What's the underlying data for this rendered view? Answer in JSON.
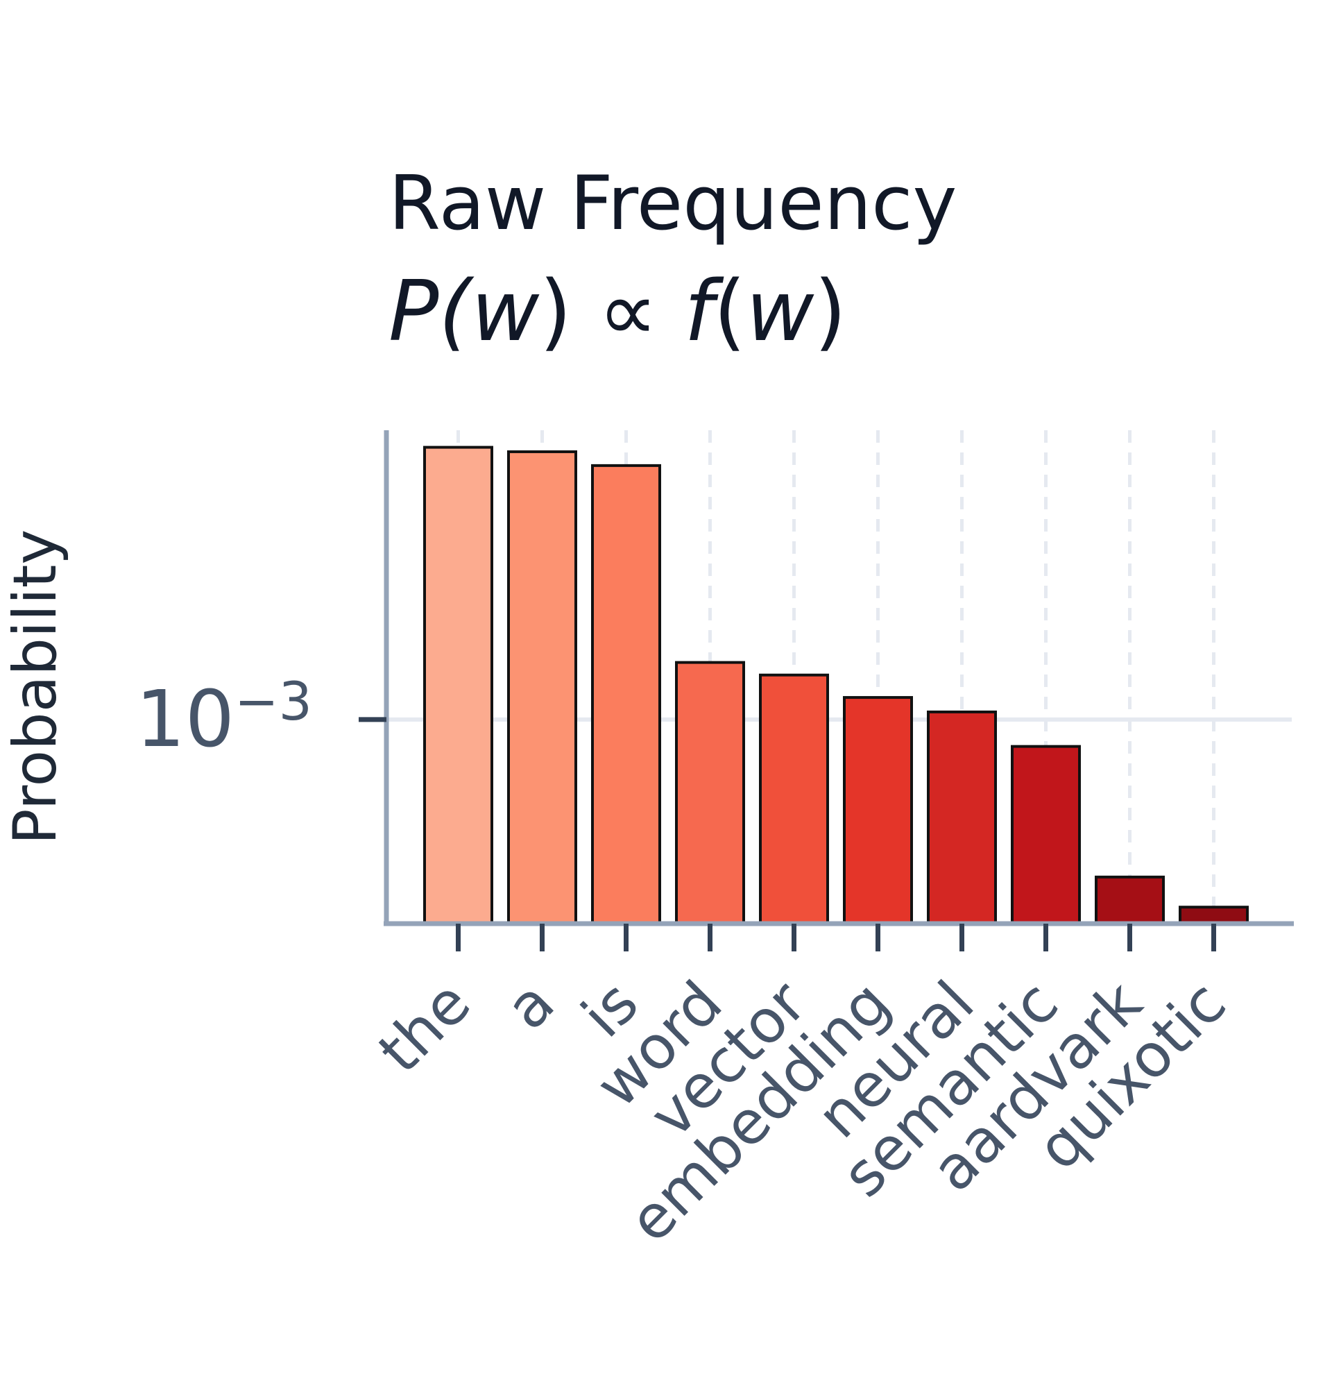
{
  "chart_data": {
    "type": "bar",
    "title": "Raw Frequency",
    "subtitle": {
      "prefix": "P(",
      "var1": "w",
      "middle": ") ∝ ",
      "func": "f",
      "paren_open": "(",
      "var2": "w",
      "suffix": ")"
    },
    "xlabel": "",
    "ylabel": "Probability",
    "yscale": "log",
    "ylim": [
      0.00045,
      0.0031
    ],
    "ytick": {
      "value": 0.001,
      "base": "10",
      "exponent": "−3"
    },
    "categories": [
      "the",
      "a",
      "is",
      "word",
      "vector",
      "embedding",
      "neural",
      "semantic",
      "aardvark",
      "quixotic"
    ],
    "values": [
      0.0029,
      0.00285,
      0.0027,
      0.00125,
      0.00119,
      0.00109,
      0.00103,
      0.0009,
      0.00054,
      0.00048
    ],
    "colors": [
      "#fcab8f",
      "#fc9372",
      "#fb7d5d",
      "#f6694f",
      "#f0503a",
      "#e43529",
      "#d42723",
      "#c1161b",
      "#a50f15",
      "#8f0c13"
    ],
    "grid": {
      "x": true,
      "y": true
    },
    "legend": "none"
  }
}
